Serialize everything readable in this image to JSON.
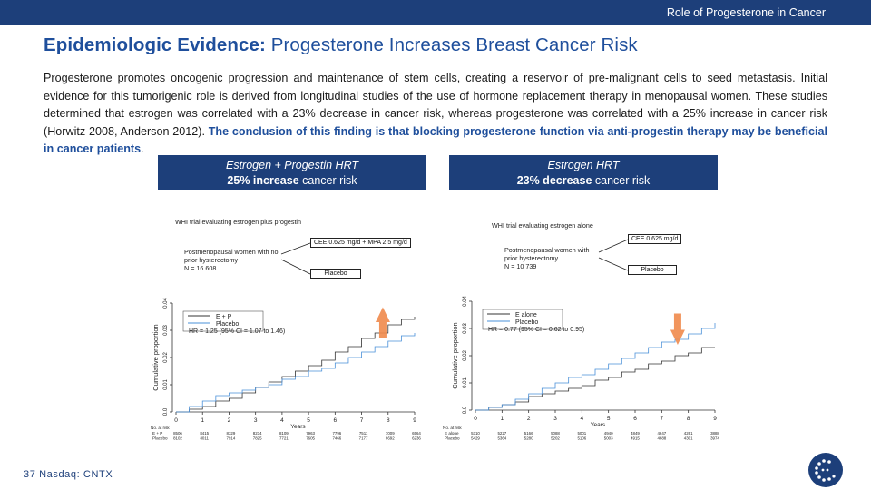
{
  "header": {
    "section_label": "Role of Progesterone in Cancer"
  },
  "title": {
    "bold": "Epidemiologic Evidence:",
    "rest": " Progesterone Increases Breast Cancer Risk"
  },
  "intro": {
    "text": "Progesterone promotes oncogenic progression and maintenance of stem cells, creating a reservoir of pre-malignant cells to seed metastasis. Initial evidence for this tumorigenic role is derived from longitudinal studies of the use of hormone replacement therapy in menopausal women. These studies determined that estrogen was correlated with a 23% decrease in cancer risk, whereas progesterone was correlated with a 25% increase in cancer risk (Horwitz 2008, Anderson 2012). ",
    "highlight": "The conclusion of this finding is that blocking progesterone function via anti-progestin therapy may be beneficial in cancer patients",
    "end": "."
  },
  "panels": [
    {
      "heading": "Estrogen + Progestin HRT",
      "result_bold": "25% increase",
      "result_rest": " cancer risk",
      "trial_title": "WHI trial evaluating estrogen plus progestin",
      "population": [
        "Postmenopausal women with no",
        "prior hysterectomy",
        "N = 16 608"
      ],
      "arm_1": "CEE 0.625 mg/d + MPA 2.5 mg/d",
      "arm_2": "Placebo",
      "hr_text": "HR = 1.25 (95% CI = 1.07 to 1.46)",
      "arrow": "up",
      "arrow_color": "#f08a4b"
    },
    {
      "heading": "Estrogen HRT",
      "result_bold": "23% decrease",
      "result_rest": " cancer risk",
      "trial_title": "WHI trial evaluating estrogen alone",
      "population": [
        "Postmenopausal women with",
        "prior hysterectomy",
        "N = 10 739"
      ],
      "arm_1": "CEE 0.625 mg/d",
      "arm_2": "Placebo",
      "hr_text": "HR = 0.77 (95% CI = 0.62 to 0.95)",
      "arrow": "down",
      "arrow_color": "#f08a4b"
    }
  ],
  "chart_data": [
    {
      "type": "line",
      "xlabel": "Years",
      "ylabel": "Cumulative proportion",
      "xlim": [
        0,
        9
      ],
      "ylim": [
        0,
        0.04
      ],
      "x_ticks": [
        0,
        1,
        2,
        3,
        4,
        5,
        6,
        7,
        8,
        9
      ],
      "y_ticks": [
        0.0,
        0.01,
        0.02,
        0.03,
        0.04
      ],
      "y_tick_labels": [
        "0.0",
        "0.01",
        "0.02",
        "0.03",
        "0.04"
      ],
      "legend_position": "top-left",
      "series": [
        {
          "name": "E + P",
          "color": "#333333",
          "x": [
            0,
            0.5,
            1,
            1.5,
            2,
            2.5,
            3,
            3.5,
            4,
            4.5,
            5,
            5.5,
            6,
            6.5,
            7,
            7.5,
            8,
            8.5,
            9
          ],
          "y": [
            0,
            0.001,
            0.002,
            0.004,
            0.005,
            0.007,
            0.009,
            0.011,
            0.013,
            0.015,
            0.017,
            0.019,
            0.022,
            0.024,
            0.027,
            0.029,
            0.032,
            0.034,
            0.035
          ]
        },
        {
          "name": "Placebo",
          "color": "#4a90d9",
          "x": [
            0,
            0.5,
            1,
            1.5,
            2,
            2.5,
            3,
            3.5,
            4,
            4.5,
            5,
            5.5,
            6,
            6.5,
            7,
            7.5,
            8,
            8.5,
            9
          ],
          "y": [
            0,
            0.002,
            0.004,
            0.006,
            0.007,
            0.008,
            0.009,
            0.01,
            0.012,
            0.013,
            0.015,
            0.016,
            0.018,
            0.02,
            0.022,
            0.024,
            0.026,
            0.028,
            0.029
          ]
        }
      ],
      "at_risk": {
        "label": "No. at risk",
        "rows": [
          {
            "name": "E + P",
            "values": [
              "8506",
              "8415",
              "8329",
              "8234",
              "8109",
              "7963",
              "7796",
              "7511",
              "7009",
              "6564"
            ]
          },
          {
            "name": "Placebo",
            "values": [
              "8102",
              "8011",
              "7914",
              "7825",
              "7721",
              "7605",
              "7466",
              "7177",
              "6692",
              "6236"
            ]
          }
        ]
      }
    },
    {
      "type": "line",
      "xlabel": "Years",
      "ylabel": "Cumulative proportion",
      "xlim": [
        0,
        9
      ],
      "ylim": [
        0,
        0.04
      ],
      "x_ticks": [
        0,
        1,
        2,
        3,
        4,
        5,
        6,
        7,
        8,
        9
      ],
      "y_ticks": [
        0.0,
        0.01,
        0.02,
        0.03,
        0.04
      ],
      "y_tick_labels": [
        "0.0",
        "0.01",
        "0.02",
        "0.03",
        "0.04"
      ],
      "legend_position": "top-left",
      "series": [
        {
          "name": "E alone",
          "color": "#333333",
          "x": [
            0,
            0.5,
            1,
            1.5,
            2,
            2.5,
            3,
            3.5,
            4,
            4.5,
            5,
            5.5,
            6,
            6.5,
            7,
            7.5,
            8,
            8.5,
            9
          ],
          "y": [
            0,
            0.001,
            0.002,
            0.003,
            0.005,
            0.006,
            0.007,
            0.008,
            0.009,
            0.011,
            0.012,
            0.014,
            0.015,
            0.017,
            0.018,
            0.02,
            0.021,
            0.023,
            0.023
          ]
        },
        {
          "name": "Placebo",
          "color": "#4a90d9",
          "x": [
            0,
            0.5,
            1,
            1.5,
            2,
            2.5,
            3,
            3.5,
            4,
            4.5,
            5,
            5.5,
            6,
            6.5,
            7,
            7.5,
            8,
            8.5,
            9
          ],
          "y": [
            0,
            0.001,
            0.002,
            0.004,
            0.006,
            0.008,
            0.01,
            0.012,
            0.013,
            0.015,
            0.017,
            0.019,
            0.021,
            0.023,
            0.025,
            0.026,
            0.028,
            0.03,
            0.032
          ]
        }
      ],
      "at_risk": {
        "label": "No. at risk",
        "rows": [
          {
            "name": "E alone",
            "values": [
              "5310",
              "5227",
              "5166",
              "5088",
              "5001",
              "4940",
              "4849",
              "4647",
              "4261",
              "3888"
            ]
          },
          {
            "name": "Placebo",
            "values": [
              "5429",
              "5364",
              "5280",
              "5202",
              "5106",
              "5003",
              "4915",
              "4688",
              "4301",
              "3974"
            ]
          }
        ]
      }
    }
  ],
  "footer": {
    "text": "37  Nasdaq: CNTX"
  },
  "logo": {
    "icon": "company-logo-icon"
  }
}
